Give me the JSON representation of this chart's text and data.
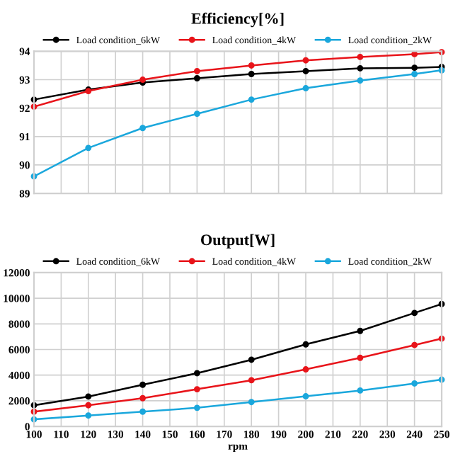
{
  "chart_data": [
    {
      "type": "line",
      "title": "Efficiency[%]",
      "x": [
        100,
        120,
        140,
        160,
        180,
        200,
        220,
        240,
        250
      ],
      "series": [
        {
          "name": "Load condition_6kW",
          "color": "#000000",
          "values": [
            92.3,
            92.65,
            92.9,
            93.05,
            93.2,
            93.3,
            93.4,
            93.42,
            93.45
          ]
        },
        {
          "name": "Load condition_4kW",
          "color": "#e8141a",
          "values": [
            92.05,
            92.6,
            93.0,
            93.3,
            93.5,
            93.68,
            93.8,
            93.9,
            93.97
          ]
        },
        {
          "name": "Load condition_2kW",
          "color": "#1aa7dc",
          "values": [
            89.6,
            90.6,
            91.3,
            91.8,
            92.3,
            92.7,
            92.97,
            93.2,
            93.33
          ]
        }
      ],
      "xlim": [
        100,
        250
      ],
      "xticks": [
        100,
        110,
        120,
        130,
        140,
        150,
        160,
        170,
        180,
        190,
        200,
        210,
        220,
        230,
        240,
        250
      ],
      "ylim": [
        89,
        94
      ],
      "yticks": [
        89,
        90,
        91,
        92,
        93,
        94
      ],
      "tick_labels": "y",
      "grid": true,
      "legend": "top",
      "marker": "circle",
      "line_style": "solid"
    },
    {
      "type": "line",
      "title": "Output[W]",
      "xlabel": "rpm",
      "x": [
        100,
        120,
        140,
        160,
        180,
        200,
        220,
        240,
        250
      ],
      "series": [
        {
          "name": "Load condition_6kW",
          "color": "#000000",
          "values": [
            1650,
            2330,
            3250,
            4150,
            5200,
            6400,
            7450,
            8850,
            9550
          ]
        },
        {
          "name": "Load condition_4kW",
          "color": "#e8141a",
          "values": [
            1150,
            1650,
            2200,
            2900,
            3600,
            4450,
            5350,
            6350,
            6850
          ]
        },
        {
          "name": "Load condition_2kW",
          "color": "#1aa7dc",
          "values": [
            550,
            850,
            1150,
            1450,
            1900,
            2350,
            2800,
            3350,
            3650
          ]
        }
      ],
      "xlim": [
        100,
        250
      ],
      "xticks": [
        100,
        110,
        120,
        130,
        140,
        150,
        160,
        170,
        180,
        190,
        200,
        210,
        220,
        230,
        240,
        250
      ],
      "ylim": [
        0,
        12000
      ],
      "yticks": [
        0,
        2000,
        4000,
        6000,
        8000,
        10000,
        12000
      ],
      "grid": true,
      "legend": "top",
      "marker": "circle",
      "line_style": "solid"
    }
  ]
}
